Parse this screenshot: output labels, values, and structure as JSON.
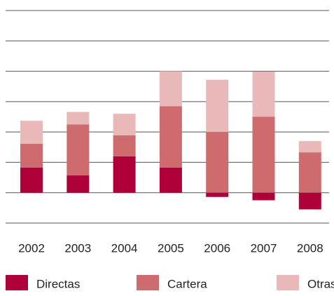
{
  "chart_data": {
    "type": "stacked_bar",
    "categories": [
      "2002",
      "2003",
      "2004",
      "2005",
      "2006",
      "2007",
      "2008"
    ],
    "series": [
      {
        "name": "Directas",
        "color": "#b0003a",
        "values": [
          0.83,
          0.57,
          1.2,
          0.83,
          -0.14,
          -0.25,
          -0.55
        ]
      },
      {
        "name": "Cartera",
        "color": "#cd6b6e",
        "values": [
          0.78,
          1.68,
          0.69,
          2.02,
          2.0,
          2.5,
          1.33
        ]
      },
      {
        "name": "Otras",
        "color": "#e8b9b8",
        "values": [
          0.76,
          0.41,
          0.71,
          1.15,
          1.72,
          1.49,
          0.37
        ]
      }
    ],
    "ylim": [
      -1,
      6
    ],
    "yticks": [
      -1,
      0,
      1,
      2,
      3,
      4,
      5,
      6
    ],
    "grid": true
  }
}
